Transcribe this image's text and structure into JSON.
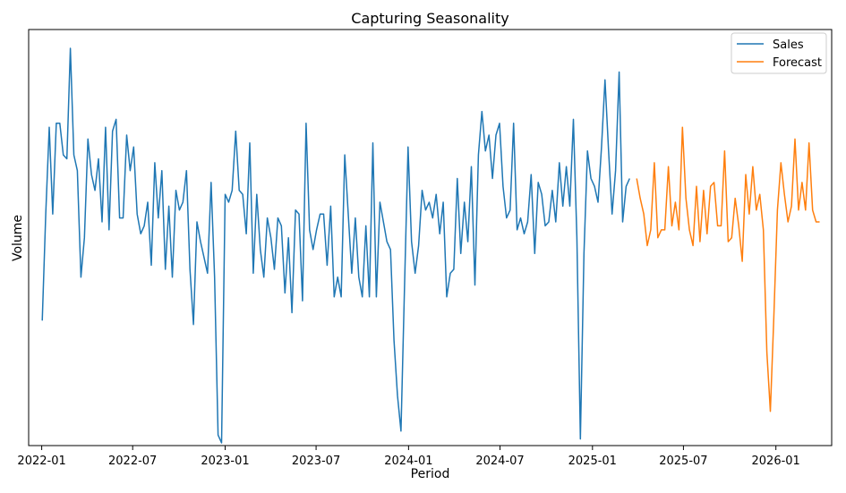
{
  "colors": {
    "sales": "#1f77b4",
    "forecast": "#ff7f0e",
    "axis": "#000000",
    "background": "#ffffff"
  },
  "chart_data": {
    "type": "line",
    "title": "Capturing Seasonality",
    "xlabel": "Period",
    "ylabel": "Volume",
    "grid": false,
    "legend_position": "top-right",
    "y_ticks_shown": false,
    "xlim": [
      "2021-12-06",
      "2026-04-22"
    ],
    "ylim": [
      0,
      100
    ],
    "x_ticks": [
      {
        "date": "2022-01-01",
        "label": "2022-01"
      },
      {
        "date": "2022-07-01",
        "label": "2022-07"
      },
      {
        "date": "2023-01-01",
        "label": "2023-01"
      },
      {
        "date": "2023-07-01",
        "label": "2023-07"
      },
      {
        "date": "2024-01-01",
        "label": "2024-01"
      },
      {
        "date": "2024-07-01",
        "label": "2024-07"
      },
      {
        "date": "2025-01-01",
        "label": "2025-01"
      },
      {
        "date": "2025-07-01",
        "label": "2025-07"
      },
      {
        "date": "2026-01-01",
        "label": "2026-01"
      }
    ],
    "series": [
      {
        "name": "Sales",
        "color": "#1f77b4",
        "start": "2022-01-02",
        "step_days": 7,
        "values": [
          31,
          58,
          80,
          58,
          81,
          81,
          73,
          72,
          100,
          73,
          69,
          42,
          52,
          77,
          68,
          64,
          72,
          56,
          80,
          54,
          79,
          82,
          57,
          57,
          78,
          69,
          75,
          58,
          53,
          55,
          61,
          45,
          71,
          57,
          69,
          44,
          60,
          42,
          64,
          59,
          61,
          69,
          44,
          30,
          56,
          51,
          47,
          43,
          66,
          42,
          2,
          0,
          63,
          61,
          64,
          79,
          64,
          63,
          53,
          76,
          43,
          63,
          49,
          42,
          57,
          52,
          44,
          57,
          55,
          38,
          52,
          33,
          59,
          58,
          36,
          81,
          54,
          49,
          54,
          58,
          58,
          45,
          60,
          37,
          42,
          37,
          73,
          58,
          43,
          57,
          42,
          37,
          55,
          37,
          76,
          37,
          61,
          56,
          51,
          49,
          26,
          12,
          3,
          40,
          75,
          51,
          43,
          50,
          64,
          59,
          61,
          57,
          63,
          53,
          61,
          37,
          43,
          44,
          67,
          48,
          61,
          51,
          70,
          40,
          73,
          84,
          74,
          78,
          67,
          78,
          81,
          65,
          57,
          59,
          81,
          54,
          57,
          53,
          56,
          68,
          48,
          66,
          63,
          55,
          56,
          64,
          56,
          71,
          60,
          70,
          60,
          82,
          52,
          1,
          48,
          74,
          67,
          65,
          61,
          75,
          92,
          74,
          58,
          69,
          94,
          56,
          65,
          67
        ]
      },
      {
        "name": "Forecast",
        "color": "#ff7f0e",
        "start": "2025-03-30",
        "step_days": 7,
        "values": [
          67,
          62,
          58,
          50,
          54,
          71,
          52,
          54,
          54,
          70,
          55,
          61,
          54,
          80,
          62,
          54,
          50,
          65,
          51,
          64,
          53,
          65,
          66,
          55,
          55,
          74,
          51,
          52,
          62,
          55,
          46,
          68,
          58,
          70,
          59,
          63,
          54,
          23,
          8,
          32,
          59,
          71,
          63,
          56,
          60,
          77,
          59,
          66,
          59,
          76,
          59,
          56,
          56
        ]
      }
    ]
  }
}
